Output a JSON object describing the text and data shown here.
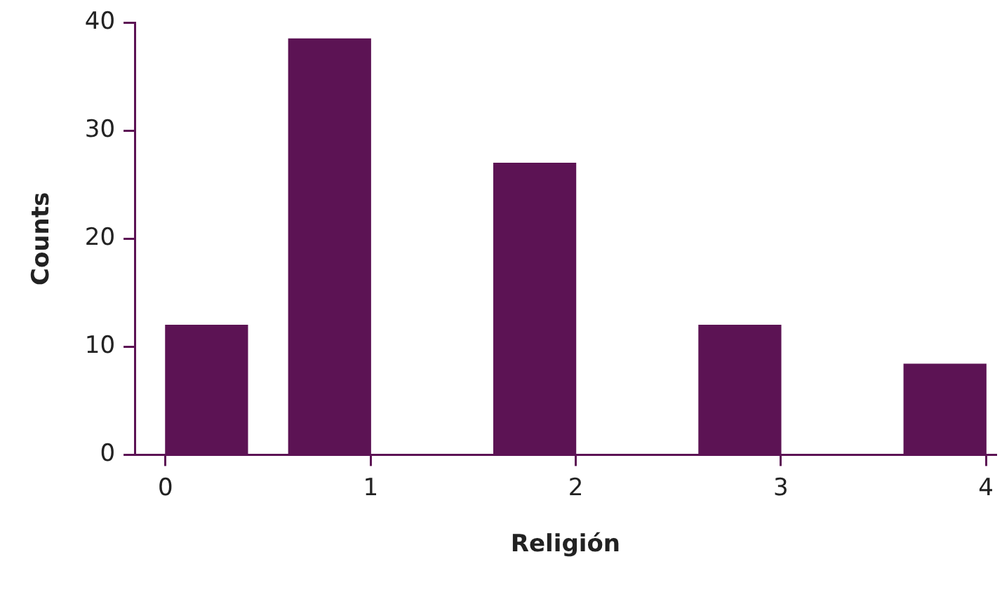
{
  "chart_data": {
    "type": "histogram",
    "xlabel": "Religión",
    "ylabel": "Counts",
    "bins": [
      0,
      0.4,
      0.6,
      1,
      1.6,
      2,
      2.6,
      3,
      3.6,
      4
    ],
    "values": [
      12,
      0,
      38.5,
      0,
      27,
      0,
      12,
      0,
      8.4
    ],
    "color": "#5c1354",
    "xlim": [
      -0.15,
      4.05
    ],
    "xticks": [
      0,
      1,
      2,
      3,
      4
    ],
    "ylim": [
      0,
      40
    ],
    "yticks": [
      0,
      10,
      20,
      30,
      40
    ],
    "grid": false,
    "legend": false
  }
}
